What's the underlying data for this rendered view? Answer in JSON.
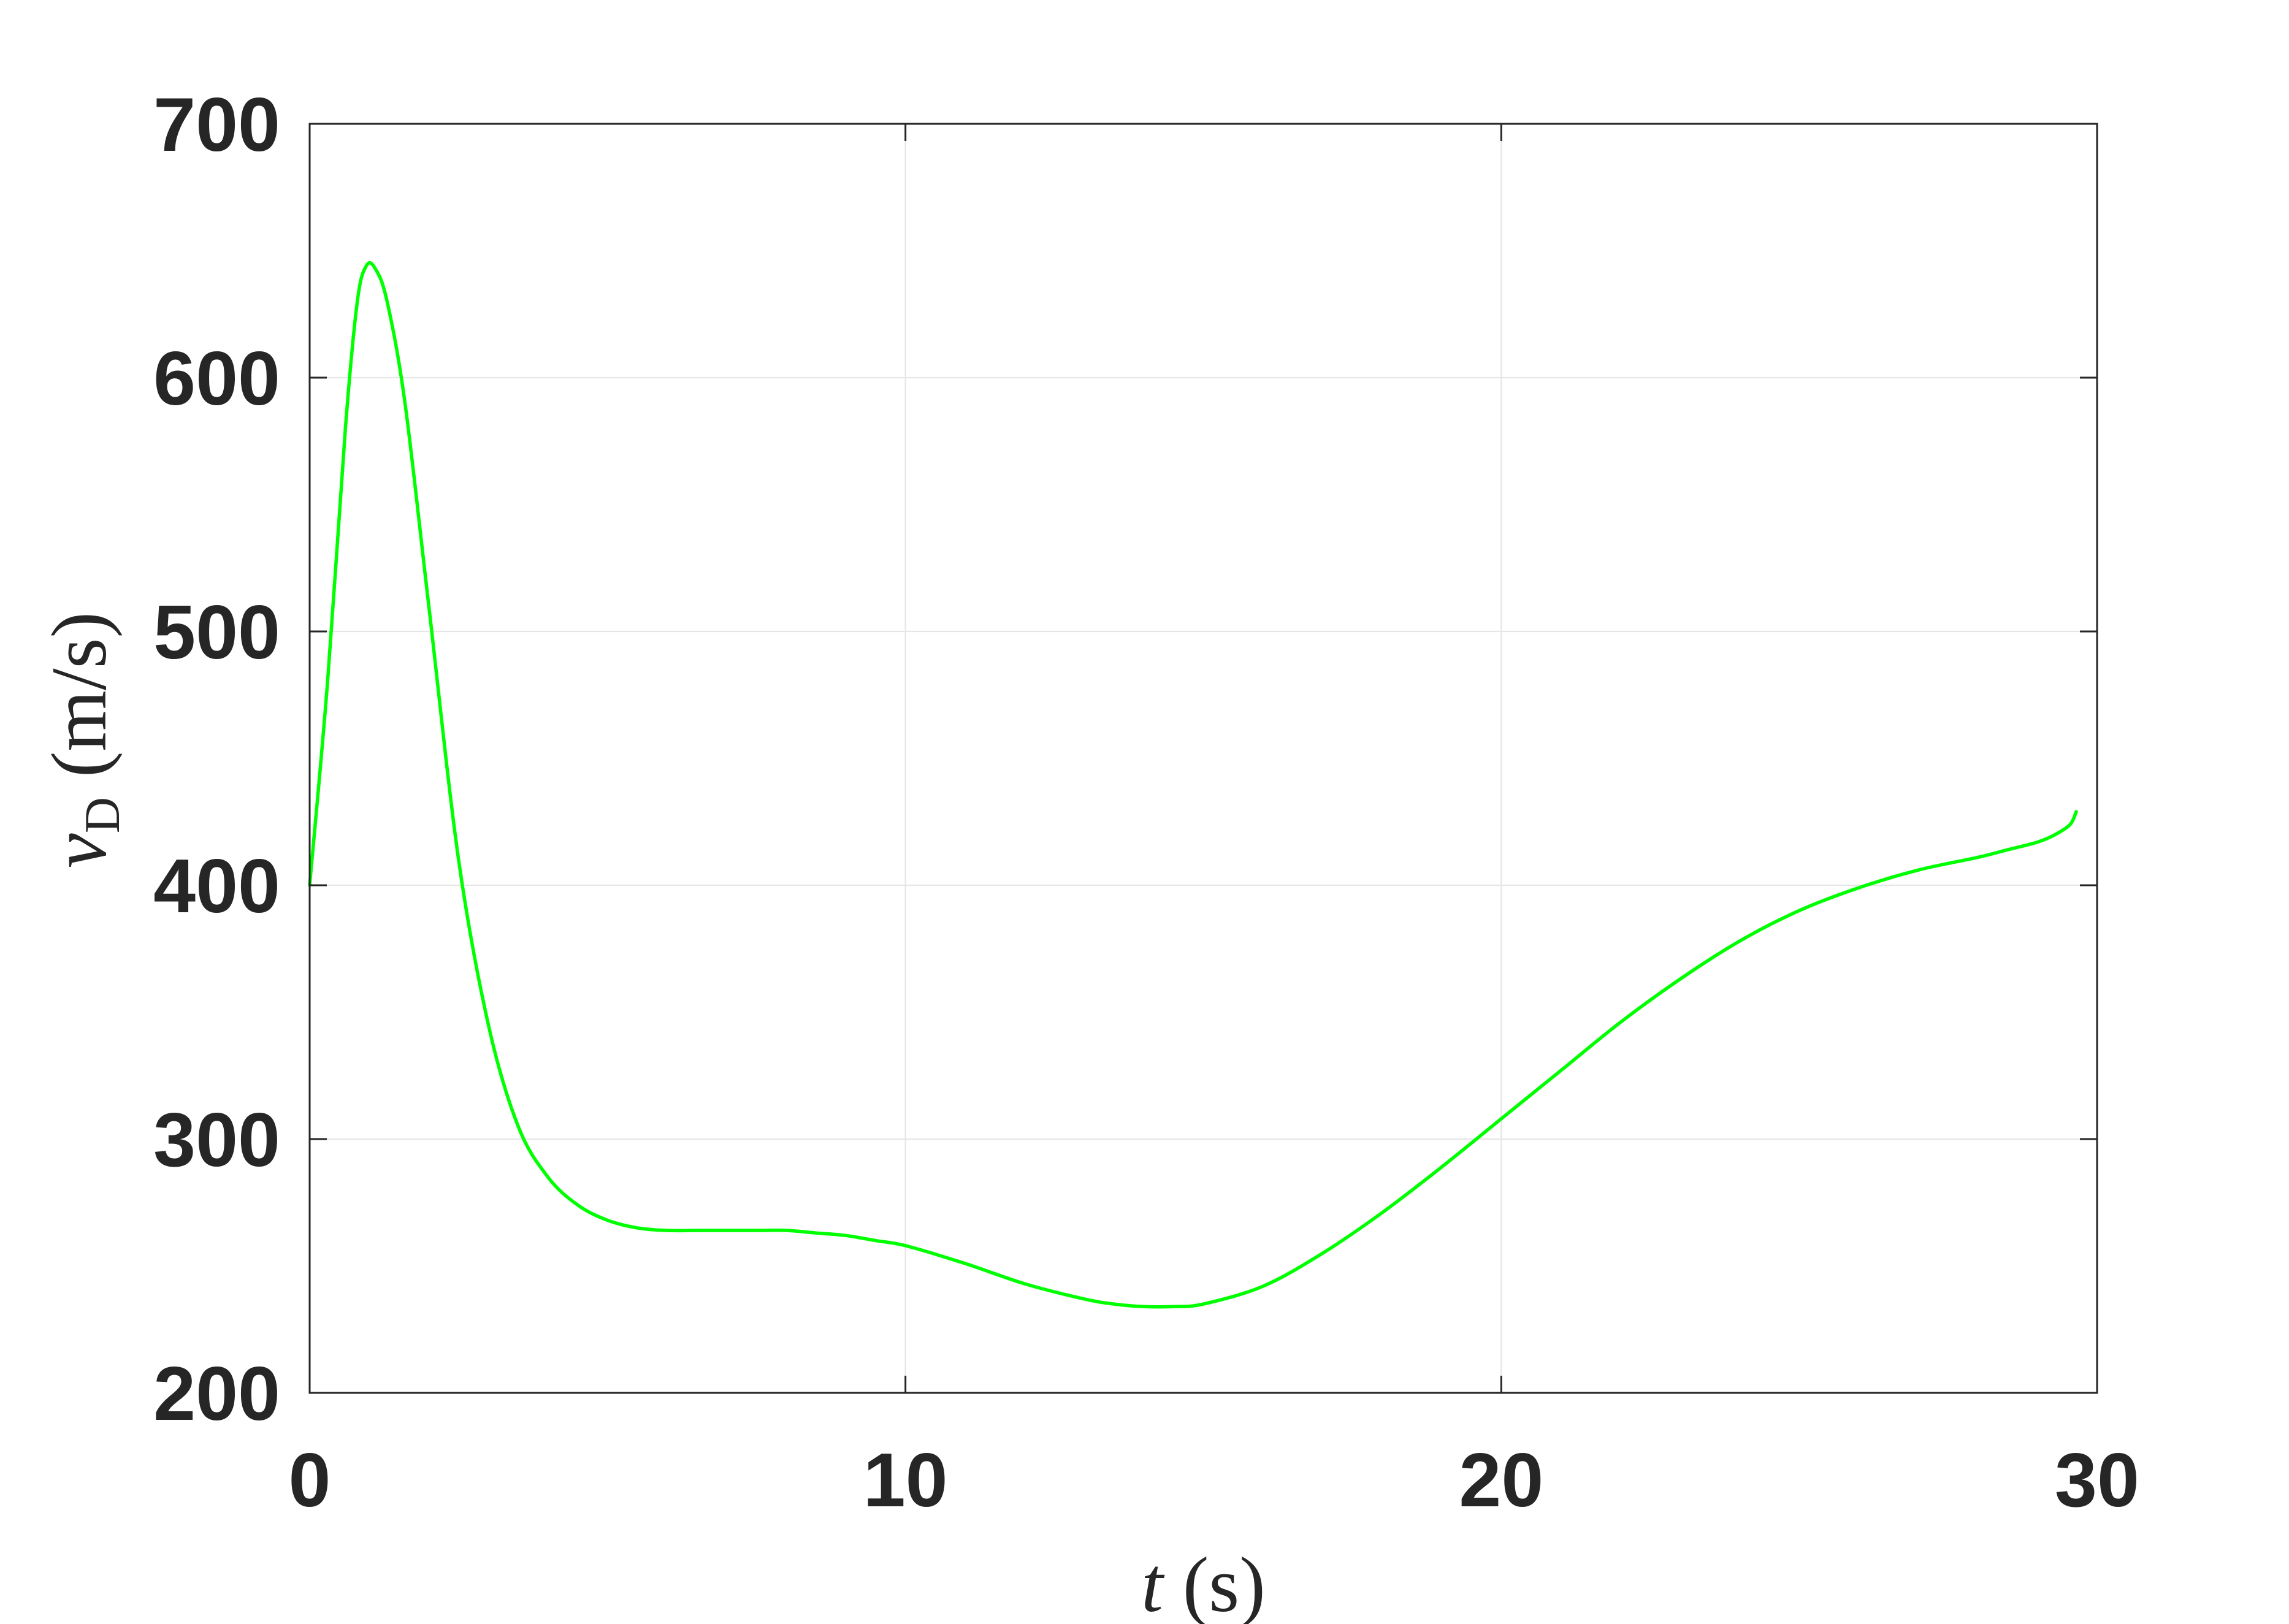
{
  "chart_data": {
    "type": "line",
    "title": "",
    "xlabel": {
      "variable": "t",
      "unit": " (s)"
    },
    "ylabel": {
      "variable": "v",
      "subscript": "D",
      "unit": " (m/s)"
    },
    "xlim": [
      0,
      30
    ],
    "ylim": [
      200,
      700
    ],
    "xticks": [
      0,
      10,
      20,
      30
    ],
    "yticks": [
      200,
      300,
      400,
      500,
      600,
      700
    ],
    "xtick_labels": [
      "0",
      "10",
      "20",
      "30"
    ],
    "ytick_labels": [
      "200",
      "300",
      "400",
      "500",
      "600",
      "700"
    ],
    "grid": true,
    "legend": "none",
    "colors": {
      "line": "#00ff00",
      "axes": "#262626",
      "grid": "#e6e6e6"
    },
    "series": [
      {
        "x": [
          0,
          0.3,
          0.6,
          0.8,
          0.95,
          1.1,
          1.3,
          1.6,
          2.0,
          2.5,
          3.0,
          3.5,
          4.0,
          4.5,
          5.0,
          5.5,
          6.0,
          6.5,
          7.0,
          7.5,
          8.0,
          8.5,
          9.0,
          9.5,
          10.0,
          11.0,
          12.0,
          13.0,
          13.5,
          14.0,
          14.5,
          15.0,
          16.0,
          17.0,
          18.0,
          19.0,
          20.0,
          21.0,
          22.0,
          23.0,
          24.0,
          25.0,
          26.0,
          27.0,
          28.0,
          28.5,
          29.0,
          29.3,
          29.55,
          29.65
        ],
        "y": [
          400,
          480,
          580,
          630,
          644,
          643,
          630,
          590,
          510,
          410,
          345,
          305,
          285,
          274,
          268,
          265,
          264,
          264,
          264,
          264,
          264,
          263,
          262,
          260,
          258,
          251,
          243,
          237,
          235,
          234,
          234,
          235,
          242,
          255,
          271,
          289,
          308,
          327,
          346,
          363,
          378,
          390,
          399,
          406,
          411,
          414,
          417,
          420,
          424,
          429
        ]
      }
    ]
  }
}
